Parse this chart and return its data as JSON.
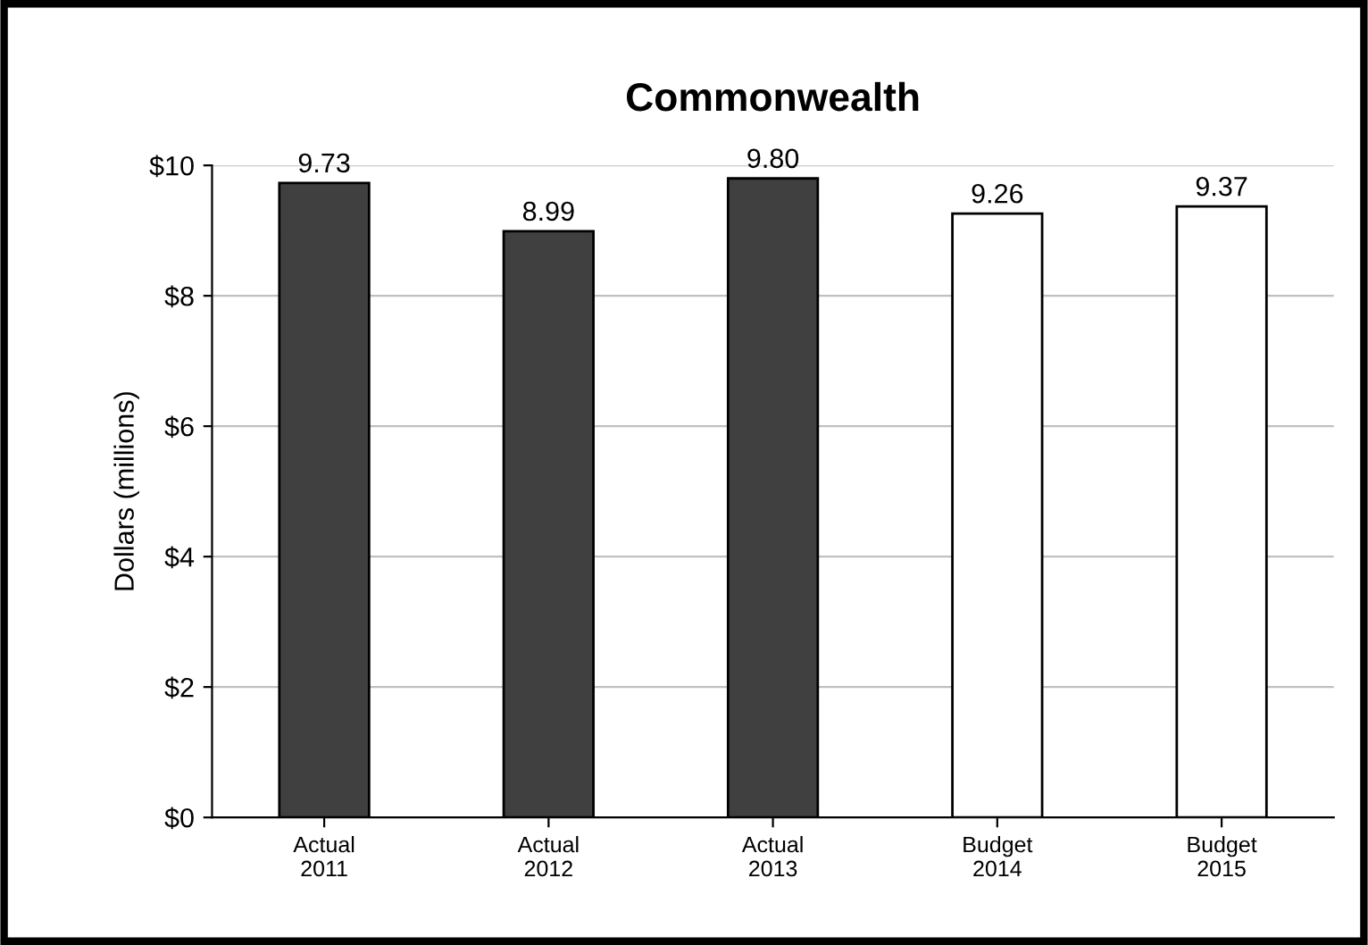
{
  "chart_data": {
    "type": "bar",
    "title": "Commonwealth",
    "ylabel": "Dollars (millions)",
    "categories": [
      "Actual\n2011",
      "Actual\n2012",
      "Actual\n2013",
      "Budget\n2014",
      "Budget\n2015"
    ],
    "values": [
      9.73,
      8.99,
      9.8,
      9.26,
      9.37
    ],
    "colors": [
      "#404040",
      "#404040",
      "#404040",
      "#ffffff",
      "#ffffff"
    ],
    "value_labels": [
      "9.73",
      "8.99",
      "9.80",
      "9.26",
      "9.37"
    ],
    "ylim": [
      0,
      10
    ],
    "yticks": [
      {
        "value": 0,
        "label": "$0"
      },
      {
        "value": 2,
        "label": "$2"
      },
      {
        "value": 4,
        "label": "$4"
      },
      {
        "value": 6,
        "label": "$6"
      },
      {
        "value": 8,
        "label": "$8"
      },
      {
        "value": 10,
        "label": "$10"
      }
    ],
    "grid": "y",
    "legend": false
  }
}
